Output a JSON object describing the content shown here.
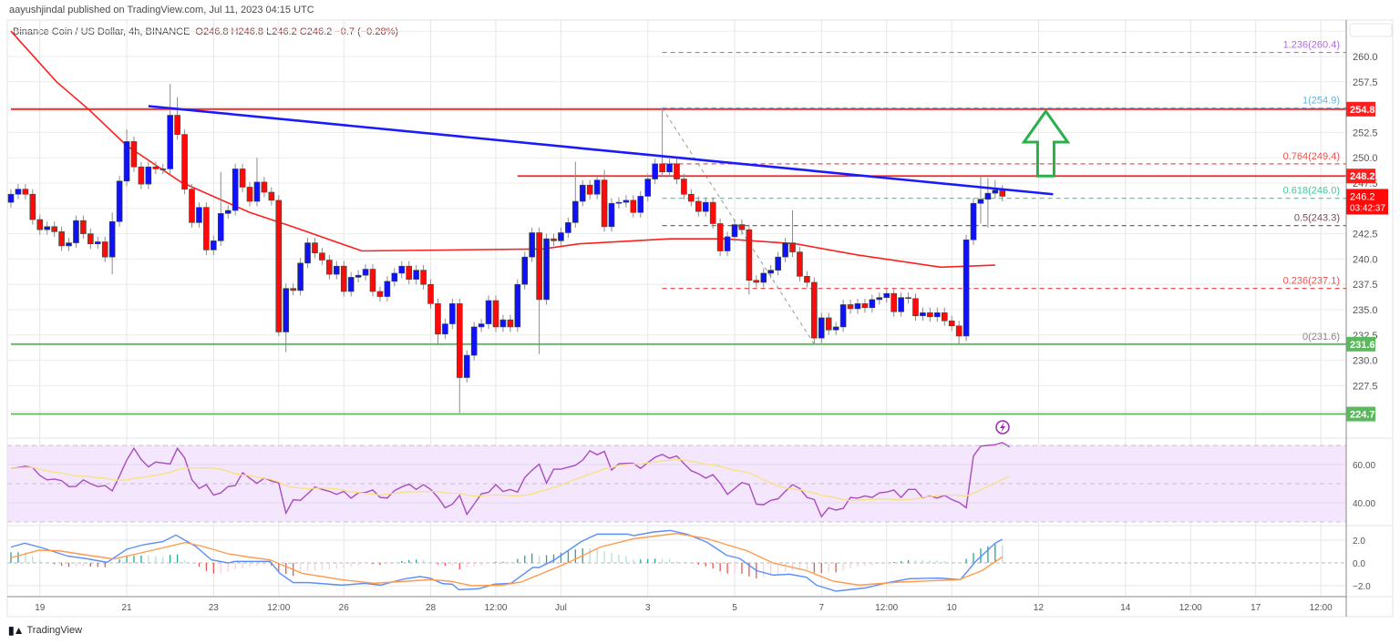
{
  "header": {
    "published": "aayushjindal published on TradingView.com, Jul 11, 2023 04:15 UTC"
  },
  "legend": {
    "symbol": "Binance Coin / US Dollar, 4h, BINANCE",
    "ohlc": "O246.8  H246.8  L246.2  C246.2  −0.7 (−0.28%)"
  },
  "footer": {
    "logo_mark": "TV",
    "logo_text": "TradingView"
  },
  "colors": {
    "up_candle": "#1010ff",
    "down_candle": "#ff0a0a",
    "wick": "#8c8c8c",
    "ma": "#ff1f1f",
    "trendline": "#1a1aff",
    "support": "#5cb85c",
    "resistance": "#ff1f1f",
    "rsi": "#a94cc0",
    "rsi_ma": "#f7e27e",
    "rsi_band": "#f3e6fd",
    "macd": "#5b8ff9",
    "signal": "#ff9a4d",
    "hist_up": "#26a69a",
    "hist_down": "#ef5350",
    "arrow": "#2ab04a",
    "alert": "#9c27b0"
  },
  "chart_data": [
    {
      "type": "candlestick",
      "pane": "price",
      "interval": "4h",
      "first_open": 245.6,
      "close": [
        246.4,
        246.9,
        246.4,
        243.9,
        242.9,
        243.2,
        242.7,
        241.3,
        241.6,
        243.8,
        242.5,
        241.5,
        241.7,
        240.2,
        243.7,
        247.7,
        251.6,
        249.1,
        247.4,
        249.1,
        248.9,
        248.9,
        254.2,
        252.3,
        246.9,
        243.6,
        245.1,
        240.9,
        241.8,
        244.5,
        244.8,
        248.9,
        247.1,
        245.7,
        247.6,
        246.6,
        245.8,
        232.8,
        237.1,
        236.9,
        239.6,
        241.6,
        240.6,
        239.9,
        238.5,
        239.3,
        236.8,
        238.2,
        238.4,
        239.0,
        236.8,
        236.3,
        237.8,
        238.6,
        239.3,
        238.0,
        238.9,
        237.5,
        235.6,
        232.6,
        233.6,
        235.6,
        228.3,
        230.5,
        233.3,
        233.6,
        235.9,
        233.3,
        234.0,
        233.3,
        237.5,
        240.2,
        242.6,
        236.0,
        242.0,
        241.8,
        242.6,
        243.6,
        245.7,
        247.3,
        246.4,
        247.8,
        243.2,
        245.5,
        245.6,
        245.8,
        244.6,
        246.2,
        247.9,
        249.4,
        248.6,
        249.4,
        247.9,
        246.4,
        245.7,
        244.7,
        245.6,
        243.5,
        240.8,
        242.2,
        243.4,
        242.9,
        237.9,
        237.7,
        238.6,
        238.9,
        240.2,
        241.6,
        240.7,
        238.3,
        237.7,
        232.2,
        234.2,
        233.0,
        233.3,
        235.5,
        235.1,
        235.6,
        235.2,
        236.0,
        236.2,
        236.6,
        234.8,
        236.2,
        236.1,
        234.4,
        234.7,
        234.3,
        234.7,
        233.9,
        233.4,
        232.4,
        241.9,
        245.5,
        245.9,
        246.5,
        246.8,
        246.2
      ],
      "notable_highs": {
        "14": 244.6,
        "16": 252.8,
        "22": 257.3,
        "23": 256.0,
        "29": 248.6,
        "34": 250.0,
        "78": 249.6,
        "82": 248.8,
        "90": 254.9,
        "108": 244.8,
        "134": 248.2,
        "135": 248.0,
        "136": 247.8
      },
      "notable_lows": {
        "14": 238.5,
        "37": 232.4,
        "38": 230.8,
        "59": 231.5,
        "62": 224.8,
        "73": 230.6,
        "102": 236.5,
        "111": 231.6,
        "131": 231.6,
        "134": 243.5,
        "135": 243.1
      },
      "moving_average": [
        [
          0,
          262.5
        ],
        [
          6.3,
          257.5
        ],
        [
          10.7,
          254.8
        ],
        [
          16,
          251.2
        ],
        [
          23.5,
          247.6
        ],
        [
          33,
          244.6
        ],
        [
          38.5,
          243.3
        ],
        [
          48.5,
          240.8
        ],
        [
          73.5,
          241.0
        ],
        [
          78.5,
          241.5
        ],
        [
          91,
          242.0
        ],
        [
          98.5,
          242.0
        ],
        [
          108.5,
          241.5
        ],
        [
          117,
          240.4
        ],
        [
          128.5,
          239.2
        ],
        [
          136,
          239.4
        ]
      ],
      "trendline": [
        [
          19,
          255.1
        ],
        [
          144,
          246.4
        ]
      ],
      "horizontal_levels": [
        {
          "price": 254.8,
          "label": "254.8",
          "kind": "resistance",
          "from_index": 0
        },
        {
          "price": 248.2,
          "label": "248.2",
          "kind": "resistance",
          "from_index": 70
        },
        {
          "price": 231.6,
          "label": "231.6",
          "kind": "support",
          "from_index": 0
        },
        {
          "price": 224.7,
          "label": "224.7",
          "kind": "support",
          "from_index": 0
        }
      ],
      "fibonacci": {
        "from": [
          90,
          254.9
        ],
        "to": [
          111,
          231.6
        ],
        "levels": [
          {
            "label": "1.236(260.4)",
            "price": 260.4,
            "color": "#b36ae2"
          },
          {
            "label": "1(254.9)",
            "price": 254.9,
            "color": "#5fb6e0"
          },
          {
            "label": "0.764(249.4)",
            "price": 249.4,
            "color": "#f05050"
          },
          {
            "label": "0.618(246.0)",
            "price": 246.0,
            "color": "#3fc99a"
          },
          {
            "label": "0.5(243.3)",
            "price": 243.3,
            "color": "#7a4a5a"
          },
          {
            "label": "0.236(237.1)",
            "price": 237.1,
            "color": "#f05050"
          },
          {
            "label": "0(231.6)",
            "price": 231.6,
            "color": "#888888"
          }
        ]
      },
      "arrow_up": {
        "index": 143,
        "from": 248.2,
        "to": 254.6
      },
      "last_price": {
        "value": "246.2",
        "countdown": "03:42:37"
      },
      "y_ticks": [
        "227.5",
        "230.0",
        "232.5",
        "235.0",
        "237.5",
        "240.0",
        "242.5",
        "247.5",
        "250.0",
        "252.5",
        "257.5",
        "260.0"
      ],
      "x_ticks": [
        {
          "index": 4,
          "label": "19"
        },
        {
          "index": 16,
          "label": "21"
        },
        {
          "index": 28,
          "label": "23"
        },
        {
          "index": 37,
          "label": "12:00"
        },
        {
          "index": 46,
          "label": "26"
        },
        {
          "index": 58,
          "label": "28"
        },
        {
          "index": 67,
          "label": "12:00"
        },
        {
          "index": 76,
          "label": "Jul"
        },
        {
          "index": 88,
          "label": "3"
        },
        {
          "index": 100,
          "label": "5"
        },
        {
          "index": 112,
          "label": "7"
        },
        {
          "index": 121,
          "label": "12:00"
        },
        {
          "index": 130,
          "label": "10"
        },
        {
          "index": 142,
          "label": "12"
        },
        {
          "index": 154,
          "label": "14"
        },
        {
          "index": 163,
          "label": "12:00"
        },
        {
          "index": 172,
          "label": "17"
        },
        {
          "index": 181,
          "label": "12:00"
        }
      ],
      "grid": true
    },
    {
      "type": "line",
      "pane": "rsi",
      "band": [
        30,
        70
      ],
      "y_ticks": [
        "60.00",
        "40.00"
      ],
      "values": [
        58,
        58.4,
        59.1,
        58.4,
        54.3,
        52,
        52.4,
        51.6,
        48.5,
        48.6,
        52,
        50,
        48.5,
        49,
        46.2,
        54,
        62.3,
        68.5,
        62.6,
        58.8,
        61.3,
        60.8,
        60.3,
        68.5,
        63.5,
        52.1,
        47.5,
        49.5,
        44,
        45.2,
        48.5,
        49,
        55.7,
        52.9,
        50.2,
        52.9,
        51.4,
        50.3,
        34.6,
        41.6,
        41.3,
        44.7,
        48.3,
        47,
        46,
        44.4,
        46,
        42.4,
        45.2,
        45.4,
        46.7,
        42.8,
        42.5,
        46.4,
        48.3,
        49.8,
        47,
        49.5,
        47,
        42.8,
        37.4,
        39.3,
        43.9,
        34,
        39.3,
        44.7,
        45.5,
        49.5,
        45.9,
        47,
        45.6,
        53.2,
        57,
        60.2,
        50.3,
        57.6,
        57.6,
        58.6,
        59.6,
        62.3,
        67.2,
        65.1,
        66.9,
        57.1,
        60.4,
        60.6,
        60.7,
        58,
        61,
        63.8,
        65.3,
        63.3,
        64.5,
        60.5,
        56.8,
        55.2,
        52.9,
        54.7,
        50.2,
        44.4,
        47.5,
        50.6,
        49.5,
        39.3,
        39,
        41.3,
        42.1,
        46,
        49.5,
        47.5,
        42.8,
        41.7,
        32.8,
        37.4,
        36.2,
        37.1,
        42.8,
        42.4,
        43.6,
        42.8,
        45.2,
        45.6,
        46.7,
        42.8,
        47,
        47,
        42.5,
        43.6,
        42.5,
        43.9,
        41.7,
        40.2,
        37.4,
        64.5,
        69.6,
        70,
        70.4,
        71.5,
        69.2
      ],
      "ma_length": 14
    },
    {
      "type": "line",
      "pane": "macd",
      "y_ticks": [
        {
          "v": 2,
          "label": "2.0"
        },
        {
          "v": 0,
          "label": "0.0"
        },
        {
          "v": -2,
          "label": "−2.0"
        }
      ],
      "macd": [
        [
          0,
          1.39
        ],
        [
          1.9,
          1.73
        ],
        [
          4.3,
          1.33
        ],
        [
          7.9,
          0.59
        ],
        [
          10.2,
          0.4
        ],
        [
          13.3,
          0.05
        ],
        [
          16,
          1.2
        ],
        [
          18.3,
          1.6
        ],
        [
          21,
          1.87
        ],
        [
          22.8,
          2.45
        ],
        [
          25.5,
          1.47
        ],
        [
          27.7,
          0.27
        ],
        [
          30,
          0
        ],
        [
          30.9,
          0.13
        ],
        [
          35.8,
          0.13
        ],
        [
          37.2,
          -0.93
        ],
        [
          39,
          -1.73
        ],
        [
          41.2,
          -1.73
        ],
        [
          45.7,
          -1.95
        ],
        [
          48.9,
          -1.79
        ],
        [
          51.1,
          -1.95
        ],
        [
          54.3,
          -1.41
        ],
        [
          56.5,
          -1.2
        ],
        [
          57.9,
          -1.33
        ],
        [
          59.6,
          -1.81
        ],
        [
          61,
          -1.87
        ],
        [
          61.9,
          -2.35
        ],
        [
          64.6,
          -2.27
        ],
        [
          66.8,
          -1.87
        ],
        [
          69.1,
          -1.79
        ],
        [
          72.1,
          -0.4
        ],
        [
          73,
          -0.4
        ],
        [
          75.1,
          0.27
        ],
        [
          78.8,
          1.87
        ],
        [
          81,
          2.53
        ],
        [
          85.2,
          2.53
        ],
        [
          86.1,
          2.4
        ],
        [
          88.8,
          2.72
        ],
        [
          91.1,
          2.85
        ],
        [
          93.4,
          2.53
        ],
        [
          96.2,
          1.81
        ],
        [
          98.9,
          0.67
        ],
        [
          100.7,
          0.4
        ],
        [
          103,
          -0.67
        ],
        [
          105.3,
          -1.07
        ],
        [
          107.6,
          -0.99
        ],
        [
          109.9,
          -1.25
        ],
        [
          111.3,
          -1.95
        ],
        [
          114,
          -2.48
        ],
        [
          118.1,
          -2.19
        ],
        [
          121.1,
          -1.73
        ],
        [
          124.1,
          -1.39
        ],
        [
          128.2,
          -1.33
        ],
        [
          131.2,
          -1.47
        ],
        [
          133.3,
          0.13
        ],
        [
          136,
          1.73
        ],
        [
          137,
          2.08
        ]
      ],
      "signal": [
        [
          0,
          0.45
        ],
        [
          3.9,
          1.12
        ],
        [
          6.6,
          1.07
        ],
        [
          10.2,
          0.72
        ],
        [
          14.2,
          0.35
        ],
        [
          17.4,
          0.8
        ],
        [
          21,
          1.33
        ],
        [
          24.1,
          1.79
        ],
        [
          26.4,
          1.47
        ],
        [
          30,
          0.8
        ],
        [
          32.7,
          0.53
        ],
        [
          35.8,
          0.27
        ],
        [
          40.3,
          -0.93
        ],
        [
          45.7,
          -1.47
        ],
        [
          50.2,
          -1.79
        ],
        [
          57.9,
          -1.47
        ],
        [
          60.6,
          -1.6
        ],
        [
          63.7,
          -2
        ],
        [
          67.8,
          -1.95
        ],
        [
          70.5,
          -1.68
        ],
        [
          76.9,
          0
        ],
        [
          81.5,
          1.41
        ],
        [
          86.1,
          2.13
        ],
        [
          92,
          2.59
        ],
        [
          96.2,
          2.13
        ],
        [
          101.7,
          1.07
        ],
        [
          105.3,
          0
        ],
        [
          109.9,
          -0.67
        ],
        [
          113.6,
          -1.6
        ],
        [
          117.2,
          -1.95
        ],
        [
          122.7,
          -1.68
        ],
        [
          131,
          -1.47
        ],
        [
          134.2,
          -0.67
        ],
        [
          137,
          0.53
        ]
      ]
    }
  ]
}
